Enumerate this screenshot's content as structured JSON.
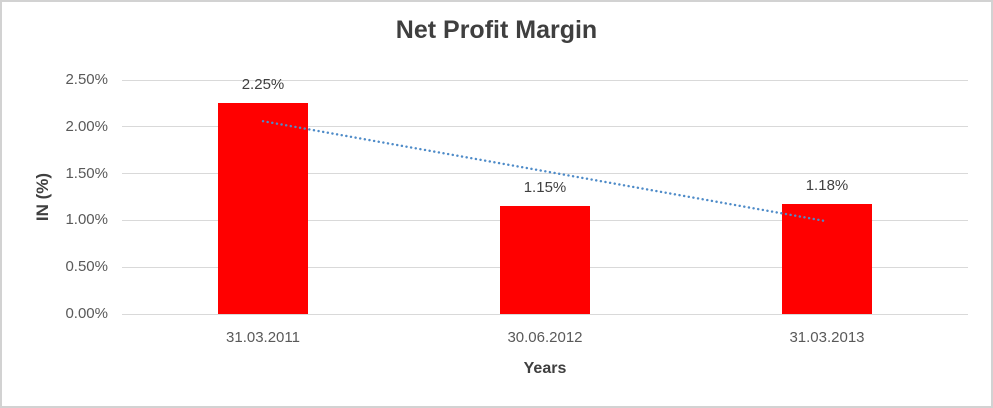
{
  "chart_data": {
    "type": "bar",
    "title": "Net Profit Margin",
    "xlabel": "Years",
    "ylabel": "IN (%)",
    "categories": [
      "31.03.2011",
      "30.06.2012",
      "31.03.2013"
    ],
    "values": [
      2.25,
      1.15,
      1.18
    ],
    "data_labels": [
      "2.25%",
      "1.15%",
      "1.18%"
    ],
    "ylim": [
      0,
      2.5
    ],
    "ytick_step": 0.5,
    "ytick_labels": [
      "0.00%",
      "0.50%",
      "1.00%",
      "1.50%",
      "2.00%",
      "2.50%"
    ],
    "grid": true,
    "legend": "none",
    "colors": {
      "bar": "#ff0000",
      "trendline": "#4e8bc8",
      "gridline": "#d9d9d9",
      "title_text": "#3f3f3f",
      "tick_text": "#595959",
      "label_text": "#404040"
    },
    "trendline": {
      "type": "linear",
      "style": "dotted",
      "color": "#4e8bc8",
      "start_value": 2.06,
      "end_value": 0.99
    }
  }
}
